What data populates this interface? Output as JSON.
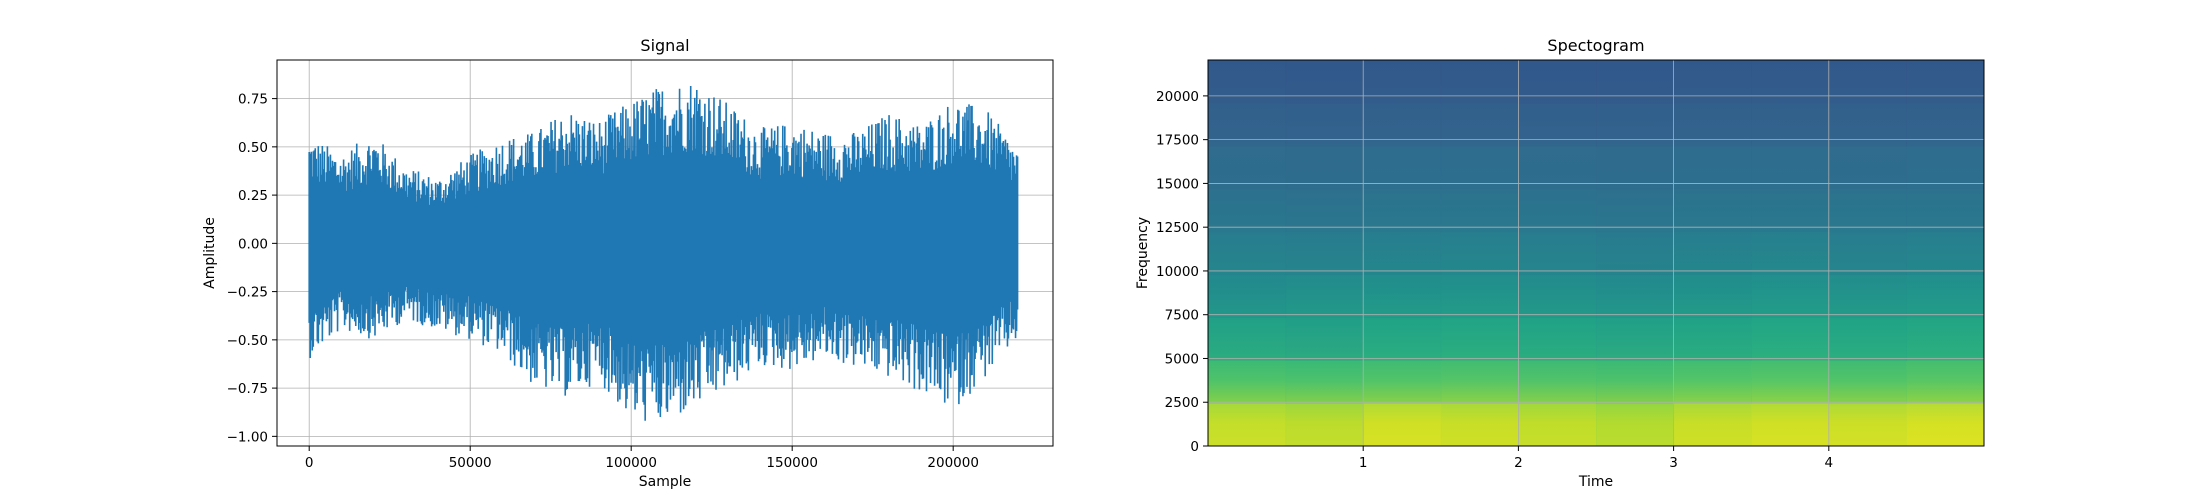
{
  "chart_data": [
    {
      "type": "line",
      "title": "Signal",
      "xlabel": "Sample",
      "ylabel": "Amplitude",
      "xlim": [
        -10000,
        231000
      ],
      "ylim": [
        -1.05,
        0.95
      ],
      "xticks": [
        0,
        50000,
        100000,
        150000,
        200000
      ],
      "xtick_labels": [
        "0",
        "50000",
        "100000",
        "150000",
        "200000"
      ],
      "yticks": [
        -1.0,
        -0.75,
        -0.5,
        -0.25,
        0.0,
        0.25,
        0.5,
        0.75
      ],
      "ytick_labels": [
        "−1.00",
        "−0.75",
        "−0.50",
        "−0.25",
        "0.00",
        "0.25",
        "0.50",
        "0.75"
      ],
      "grid": true,
      "series": [
        {
          "color": "#1f77b4",
          "x": [
            0,
            10000,
            20000,
            30000,
            40000,
            50000,
            60000,
            70000,
            80000,
            90000,
            100000,
            110000,
            120000,
            130000,
            140000,
            150000,
            160000,
            170000,
            180000,
            190000,
            200000,
            210000,
            220000
          ],
          "upper": [
            0.56,
            0.47,
            0.57,
            0.4,
            0.34,
            0.46,
            0.55,
            0.58,
            0.7,
            0.64,
            0.74,
            0.83,
            0.86,
            0.73,
            0.6,
            0.63,
            0.58,
            0.58,
            0.68,
            0.62,
            0.75,
            0.7,
            0.5
          ],
          "lower": [
            -0.6,
            -0.45,
            -0.5,
            -0.4,
            -0.45,
            -0.5,
            -0.58,
            -0.75,
            -0.8,
            -0.72,
            -0.92,
            -0.95,
            -0.86,
            -0.76,
            -0.64,
            -0.66,
            -0.6,
            -0.65,
            -0.7,
            -0.78,
            -0.87,
            -0.7,
            -0.5
          ]
        }
      ]
    },
    {
      "type": "heatmap",
      "title": "Spectogram",
      "xlabel": "Time",
      "ylabel": "Frequency",
      "xlim": [
        0,
        5.0
      ],
      "ylim": [
        0,
        22050
      ],
      "xticks": [
        1,
        2,
        3,
        4
      ],
      "xtick_labels": [
        "1",
        "2",
        "3",
        "4"
      ],
      "yticks": [
        0,
        2500,
        5000,
        7500,
        10000,
        12500,
        15000,
        17500,
        20000
      ],
      "ytick_labels": [
        "0",
        "2500",
        "5000",
        "7500",
        "10000",
        "12500",
        "15000",
        "17500",
        "20000"
      ],
      "grid": true,
      "colormap": "viridis",
      "time_bins": [
        0.25,
        0.75,
        1.25,
        1.75,
        2.25,
        2.75,
        3.25,
        3.75,
        4.25,
        4.75
      ],
      "freq_bins": [
        1250,
        3750,
        6250,
        8750,
        11250,
        13750,
        16250,
        18750,
        21250
      ],
      "intensity": [
        [
          0.92,
          0.9,
          0.95,
          0.93,
          0.91,
          0.88,
          0.93,
          0.95,
          0.94,
          0.96
        ],
        [
          0.78,
          0.76,
          0.8,
          0.82,
          0.79,
          0.77,
          0.81,
          0.83,
          0.8,
          0.84
        ],
        [
          0.6,
          0.58,
          0.63,
          0.64,
          0.61,
          0.59,
          0.62,
          0.65,
          0.63,
          0.66
        ],
        [
          0.5,
          0.52,
          0.55,
          0.56,
          0.52,
          0.5,
          0.55,
          0.57,
          0.54,
          0.58
        ],
        [
          0.45,
          0.44,
          0.47,
          0.48,
          0.45,
          0.43,
          0.47,
          0.49,
          0.46,
          0.48
        ],
        [
          0.4,
          0.39,
          0.41,
          0.42,
          0.4,
          0.39,
          0.41,
          0.42,
          0.41,
          0.42
        ],
        [
          0.36,
          0.35,
          0.37,
          0.37,
          0.36,
          0.35,
          0.37,
          0.37,
          0.36,
          0.37
        ],
        [
          0.3,
          0.29,
          0.3,
          0.3,
          0.29,
          0.29,
          0.3,
          0.3,
          0.3,
          0.3
        ],
        [
          0.27,
          0.26,
          0.27,
          0.27,
          0.26,
          0.26,
          0.27,
          0.27,
          0.27,
          0.27
        ]
      ]
    }
  ]
}
